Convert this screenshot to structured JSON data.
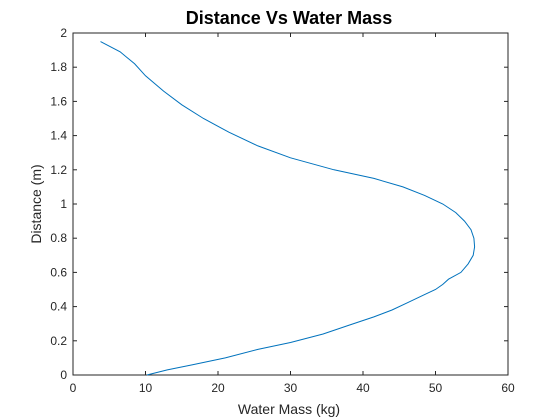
{
  "chart_data": {
    "type": "line",
    "title": "Distance Vs Water Mass",
    "xlabel": "Water Mass (kg)",
    "ylabel": "Distance (m)",
    "xlim": [
      0,
      60
    ],
    "ylim": [
      0,
      2
    ],
    "xticks": [
      0,
      10,
      20,
      30,
      40,
      50,
      60
    ],
    "yticks": [
      0,
      0.2,
      0.4,
      0.6,
      0.8,
      1,
      1.2,
      1.4,
      1.6,
      1.8,
      2
    ],
    "grid": false,
    "legend": null,
    "series": [
      {
        "color": "#0072BD",
        "points": [
          [
            10.2,
            0.0
          ],
          [
            13.0,
            0.03
          ],
          [
            16.5,
            0.06
          ],
          [
            21.0,
            0.1
          ],
          [
            25.5,
            0.15
          ],
          [
            30.0,
            0.19
          ],
          [
            34.5,
            0.24
          ],
          [
            38.0,
            0.29
          ],
          [
            41.5,
            0.34
          ],
          [
            44.0,
            0.38
          ],
          [
            46.0,
            0.42
          ],
          [
            48.5,
            0.47
          ],
          [
            50.0,
            0.5
          ],
          [
            51.0,
            0.53
          ],
          [
            51.8,
            0.56
          ],
          [
            53.5,
            0.6
          ],
          [
            54.5,
            0.65
          ],
          [
            55.2,
            0.7
          ],
          [
            55.4,
            0.75
          ],
          [
            55.3,
            0.8
          ],
          [
            54.9,
            0.85
          ],
          [
            54.0,
            0.9
          ],
          [
            52.8,
            0.95
          ],
          [
            51.0,
            1.0
          ],
          [
            48.5,
            1.05
          ],
          [
            45.5,
            1.1
          ],
          [
            41.5,
            1.15
          ],
          [
            36.0,
            1.2
          ],
          [
            30.0,
            1.27
          ],
          [
            25.5,
            1.34
          ],
          [
            21.5,
            1.42
          ],
          [
            18.0,
            1.5
          ],
          [
            15.0,
            1.58
          ],
          [
            12.5,
            1.66
          ],
          [
            10.0,
            1.75
          ],
          [
            8.5,
            1.82
          ],
          [
            6.5,
            1.89
          ],
          [
            3.8,
            1.95
          ]
        ]
      }
    ]
  }
}
